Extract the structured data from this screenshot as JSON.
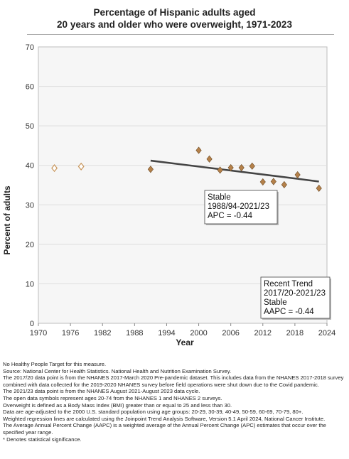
{
  "title_lines": [
    "Percentage of Hispanic adults aged",
    "20 years and older who were overweight, 1971-2023"
  ],
  "chart_data": {
    "type": "scatter",
    "xlabel": "Year",
    "ylabel": "Percent of adults",
    "xlim": [
      1970,
      2024
    ],
    "ylim": [
      0,
      70
    ],
    "xticks": [
      1970,
      1976,
      1982,
      1988,
      1994,
      2000,
      2006,
      2012,
      2018,
      2024
    ],
    "yticks": [
      0,
      10,
      20,
      30,
      40,
      50,
      60,
      70
    ],
    "grid": "horizontal",
    "series": [
      {
        "style": "open-diamond",
        "color": "#c8955a",
        "points": [
          {
            "x": 1973,
            "y": 39.3
          },
          {
            "x": 1978,
            "y": 39.7
          }
        ]
      },
      {
        "style": "filled-diamond",
        "color": "#b5814a",
        "points": [
          {
            "x": 1991,
            "y": 39.0
          },
          {
            "x": 2000,
            "y": 43.8
          },
          {
            "x": 2002,
            "y": 41.6
          },
          {
            "x": 2004,
            "y": 38.8
          },
          {
            "x": 2006,
            "y": 39.4
          },
          {
            "x": 2008,
            "y": 39.4
          },
          {
            "x": 2010,
            "y": 39.8
          },
          {
            "x": 2012,
            "y": 35.8
          },
          {
            "x": 2014,
            "y": 35.9
          },
          {
            "x": 2016,
            "y": 35.1
          },
          {
            "x": 2018.5,
            "y": 37.6
          },
          {
            "x": 2022.5,
            "y": 34.2
          }
        ]
      }
    ],
    "trend_lines": [
      {
        "color": "#444444",
        "points": [
          {
            "x": 1991,
            "y": 41.2
          },
          {
            "x": 2018.5,
            "y": 36.6
          }
        ]
      },
      {
        "color": "#444444",
        "points": [
          {
            "x": 2018.5,
            "y": 36.6
          },
          {
            "x": 2022.5,
            "y": 35.9
          }
        ]
      }
    ],
    "annotations": [
      {
        "lines": [
          "Stable",
          "1988/94-2021/23",
          "APC = -0.44"
        ],
        "anchor_x": 2012,
        "anchor_y": 37.6
      },
      {
        "lines": [
          "Recent Trend",
          "2017/20-2021/23",
          "Stable",
          "AAPC = -0.44"
        ],
        "anchor_x": 2022.5,
        "anchor_y": 35.9
      }
    ]
  },
  "footnotes": [
    "No Healthy People Target for this measure.",
    "Source: National Center for Health Statistics. National Health and Nutrition Examination Survey.",
    "The 2017/20 data point is from the NHANES 2017-March 2020 Pre-pandemic dataset. This includes data from the NHANES 2017-2018 survey combined with data collected for the 2019-2020 NHANES survey before field operations were shut down due to the Covid pandemic.",
    "The 2021/23 data point is from the NHANES August 2021-August 2023 data cycle.",
    "The open data symbols represent ages 20-74 from the NHANES 1 and NHANES 2 surveys.",
    "Overweight is defined as a Body Mass Index (BMI) greater than or equal to 25 and less than 30.",
    "Data are age-adjusted to the 2000 U.S. standard population using age groups: 20-29, 30-39, 40-49, 50-59, 60-69, 70-79, 80+.",
    "Weighted regression lines are calculated using the Joinpoint Trend Analysis Software, Version 5.1 April 2024, National Cancer Institute.",
    "The Average Annual Percent Change (AAPC) is a weighted average of the Annual Percent Change (APC) estimates that occur over the specified year range.",
    "* Denotes statistical significance."
  ]
}
